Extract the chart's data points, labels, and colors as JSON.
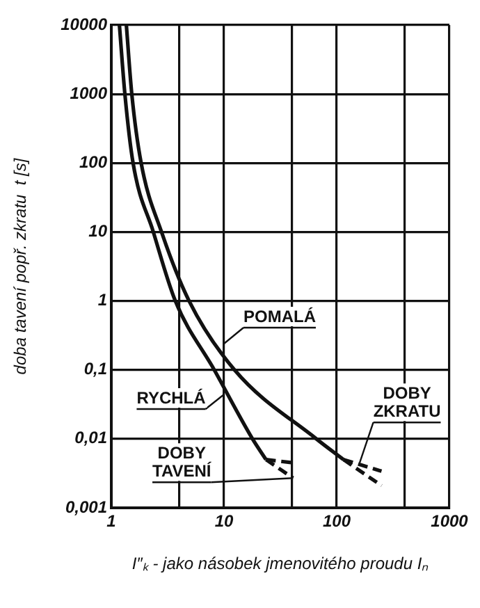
{
  "chart_data": {
    "type": "line",
    "xlabel": "I″ₖ - jako násobek jmenovitého proudu Iₙ",
    "ylabel": "doba tavení popř. zkratu  t [s]",
    "log": "xy",
    "xlim": [
      1,
      1000
    ],
    "xticks": [
      1,
      {
        "value": 4,
        "label": null
      },
      10,
      {
        "value": 40,
        "label": null
      },
      100,
      {
        "value": 400,
        "label": null
      },
      1000
    ],
    "ylim": [
      0.001,
      10000
    ],
    "yticks": [
      {
        "value": 0.001,
        "label": "0,001"
      },
      {
        "value": 0.01,
        "label": "0,01"
      },
      {
        "value": 0.1,
        "label": "0,1"
      },
      1,
      10,
      100,
      1000,
      10000
    ],
    "grid": true,
    "legend": false,
    "marker": "none",
    "series": [
      {
        "color": "#111111",
        "line_style": "solid",
        "x": [
          1.18,
          1.32,
          1.56,
          2.36,
          3.7,
          8.2,
          17.9,
          23.6
        ],
        "values": [
          10000,
          1000,
          100,
          10,
          1,
          0.1,
          0.01,
          0.005
        ]
      },
      {
        "color": "#111111",
        "line_style": "solid",
        "x": [
          1.36,
          1.52,
          1.84,
          2.79,
          4.9,
          12.4,
          66,
          115
        ],
        "values": [
          10000,
          1000,
          100,
          10,
          1,
          0.1,
          0.01,
          0.005
        ]
      },
      {
        "color": "#111111",
        "line_style": "dashed",
        "x": [
          23.6,
          41
        ],
        "values": [
          0.005,
          0.0027
        ]
      },
      {
        "color": "#111111",
        "line_style": "dashed",
        "x": [
          23.6,
          41
        ],
        "values": [
          0.005,
          0.0045
        ]
      },
      {
        "color": "#111111",
        "line_style": "dashed",
        "x": [
          115,
          250
        ],
        "values": [
          0.005,
          0.0021
        ]
      },
      {
        "color": "#111111",
        "line_style": "dashed",
        "x": [
          115,
          250
        ],
        "values": [
          0.005,
          0.0034
        ]
      }
    ],
    "annotations": [
      {
        "text": "POMALÁ",
        "x": 10,
        "y": 0.24
      },
      {
        "text": "RYCHLÁ",
        "x": 10,
        "y": 0.044
      },
      {
        "text": "DOBY ZKRATU",
        "x": 160,
        "y": 0.0045
      },
      {
        "text": "DOBY TAVENÍ",
        "x": 41,
        "y": 0.0027
      }
    ]
  }
}
